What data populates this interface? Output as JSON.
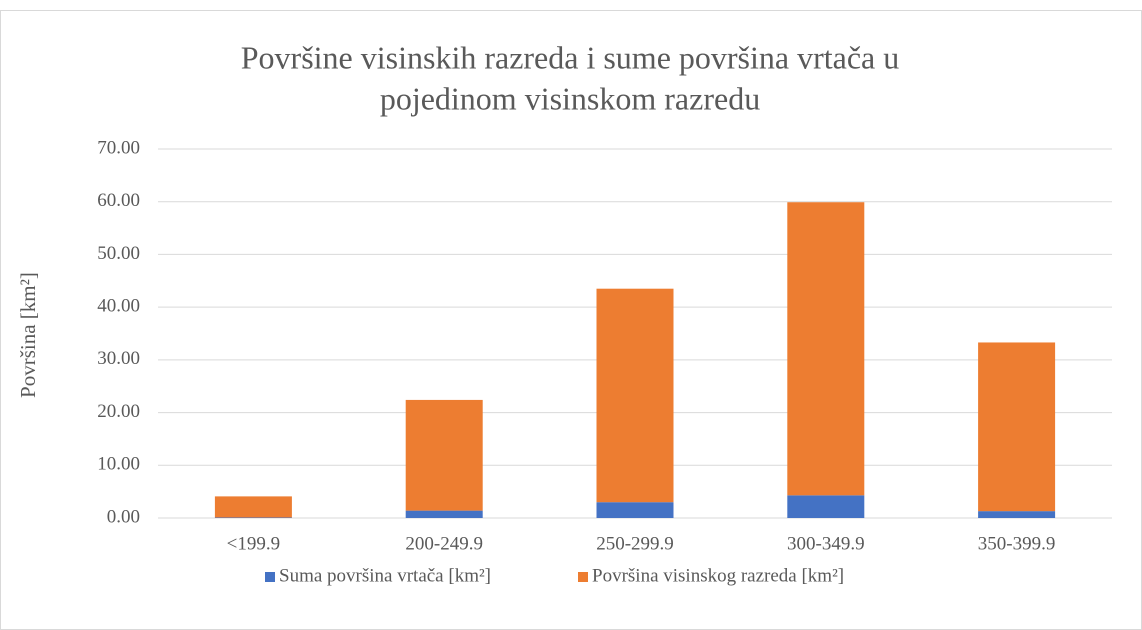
{
  "chart_data": {
    "type": "stacked_bar",
    "title": [
      "Površine visinskih razreda i sume površina vrtača u",
      "pojedinom visinskom razredu"
    ],
    "y_label": "Površina [km²]",
    "categories": [
      "<199.9",
      "200-249.9",
      "250-299.9",
      "300-349.9",
      "350-399.9"
    ],
    "series": [
      {
        "name": "Suma površina vrtača [km²]",
        "color": "#4472c4",
        "values": [
          0.1,
          1.4,
          3.0,
          4.3,
          1.3
        ]
      },
      {
        "name": "Površina visinskog razreda [km²]",
        "color": "#ed7d31",
        "values": [
          4.0,
          21.0,
          40.5,
          55.6,
          32.0
        ]
      }
    ],
    "ylim": [
      0,
      70
    ],
    "yticks": [
      {
        "value": 0,
        "label": "0.00"
      },
      {
        "value": 10,
        "label": "10.00"
      },
      {
        "value": 20,
        "label": "20.00"
      },
      {
        "value": 30,
        "label": "30.00"
      },
      {
        "value": 40,
        "label": "40.00"
      },
      {
        "value": 50,
        "label": "50.00"
      },
      {
        "value": 60,
        "label": "60.00"
      },
      {
        "value": 70,
        "label": "70.00"
      }
    ],
    "grid": true,
    "legend": "bottom"
  }
}
